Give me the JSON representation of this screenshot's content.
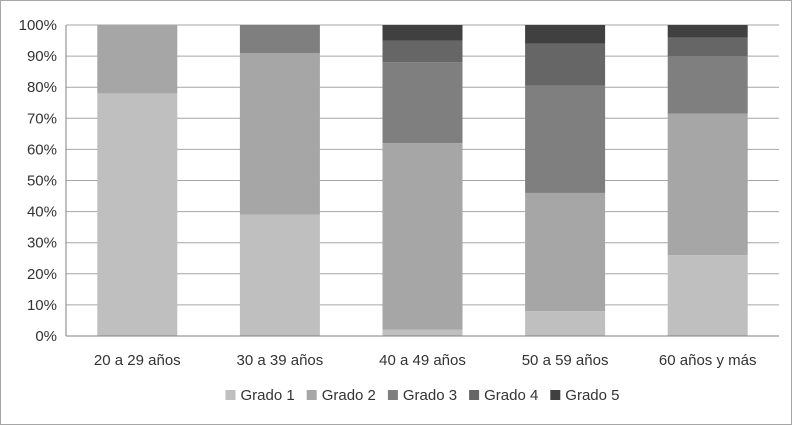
{
  "chart_data": {
    "type": "bar",
    "stacked": true,
    "percent": true,
    "categories": [
      "20 a 29 años",
      "30 a 39 años",
      "40 a 49 años",
      "50 a 59 años",
      "60 años y más"
    ],
    "series": [
      {
        "name": "Grado 1",
        "color": "#bfbfbf",
        "values": [
          78,
          39,
          2,
          8,
          26
        ]
      },
      {
        "name": "Grado 2",
        "color": "#a6a6a6",
        "values": [
          22,
          52,
          60,
          38,
          45.5
        ]
      },
      {
        "name": "Grado 3",
        "color": "#7f7f7f",
        "values": [
          0,
          9,
          26,
          34.5,
          18.5
        ]
      },
      {
        "name": "Grado 4",
        "color": "#666666",
        "values": [
          0,
          0,
          7,
          13.5,
          6
        ]
      },
      {
        "name": "Grado 5",
        "color": "#404040",
        "values": [
          0,
          0,
          5,
          6,
          4
        ]
      }
    ],
    "yticks": [
      "0%",
      "10%",
      "20%",
      "30%",
      "40%",
      "50%",
      "60%",
      "70%",
      "80%",
      "90%",
      "100%"
    ],
    "ylim": [
      0,
      100
    ],
    "grid": true,
    "legend": "bottom",
    "title": "",
    "xlabel": "",
    "ylabel": ""
  }
}
